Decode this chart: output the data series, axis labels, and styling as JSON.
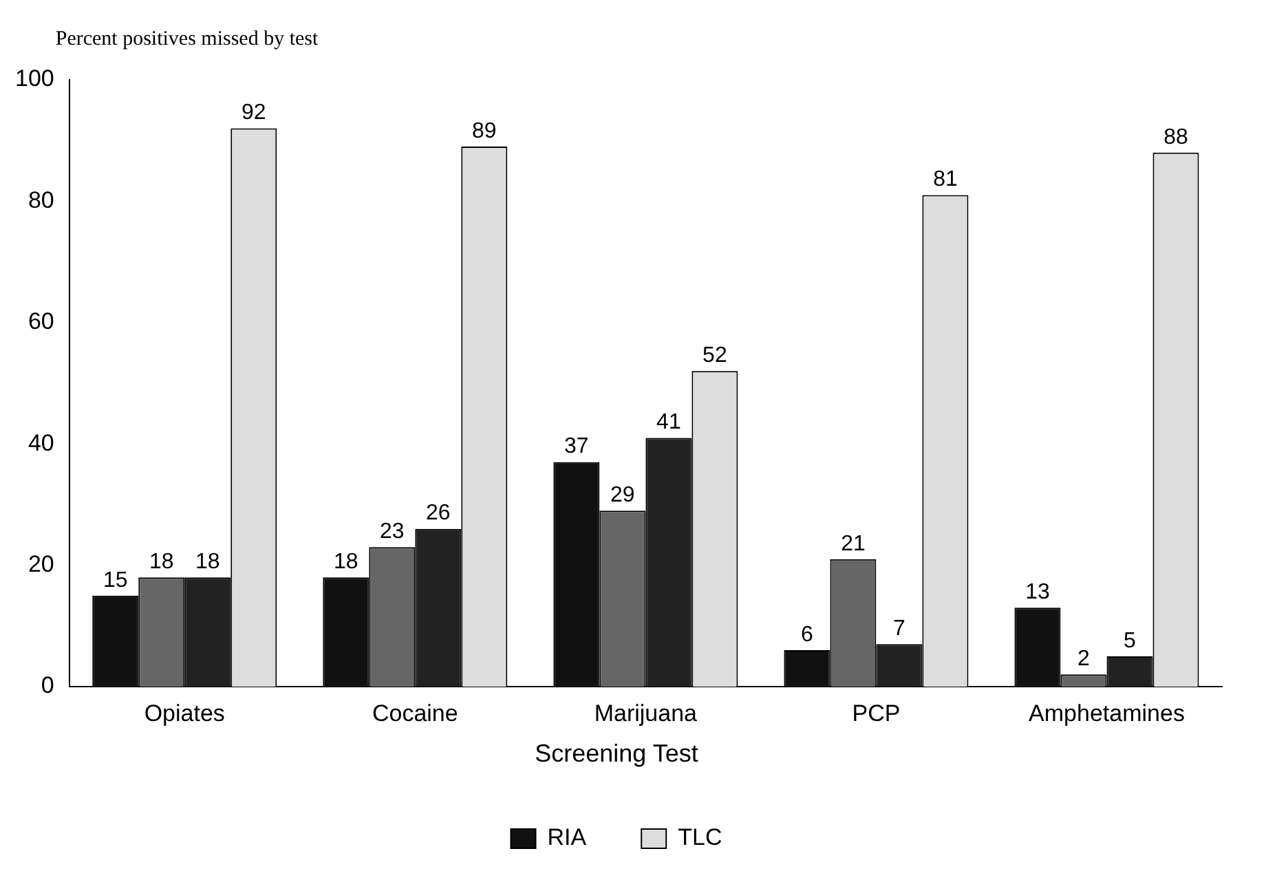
{
  "chart_data": {
    "type": "bar",
    "ylabel": "Percent positives missed by test",
    "categories": [
      "Opiates",
      "Cocaine",
      "Marijuana",
      "PCP",
      "Amphetamines"
    ],
    "series": [
      {
        "name": "RIA",
        "color": "#111111",
        "values": [
          15,
          18,
          37,
          6,
          13
        ]
      },
      {
        "color": "#666666",
        "values": [
          18,
          23,
          29,
          21,
          2
        ]
      },
      {
        "color": "#222222",
        "values": [
          18,
          26,
          41,
          7,
          5
        ]
      },
      {
        "name": "TLC",
        "color": "#dddddd",
        "values": [
          92,
          89,
          52,
          81,
          88
        ]
      }
    ],
    "ylim": [
      0,
      100
    ],
    "yticks": [
      0,
      20,
      40,
      60,
      80,
      100
    ],
    "grid": false,
    "legend": "bottom",
    "legend_title": "Screening Test",
    "data_labels": true
  }
}
